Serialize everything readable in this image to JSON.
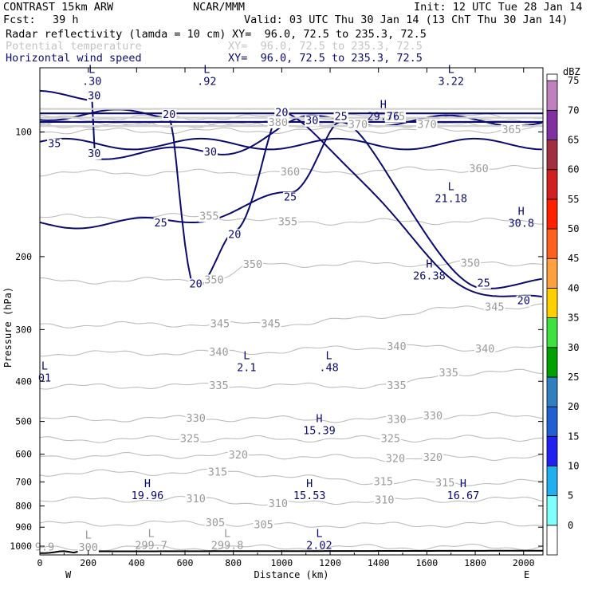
{
  "header": {
    "model": "CONTRAST 15km ARW",
    "org": "NCAR/MMM",
    "init": "Init: 12 UTC Tue 28 Jan 14",
    "fcst_label": "Fcst:",
    "fcst_value": "39 h",
    "valid": "Valid: 03 UTC Thu 30 Jan 14 (13 ChT Thu 30 Jan 14)"
  },
  "fields": [
    {
      "name": "Radar reflectivity (lamda = 10 cm)",
      "xy": "XY=  96.0, 72.5 to 235.3, 72.5",
      "color": "#000000"
    },
    {
      "name": "Potential temperature",
      "xy": "XY=  96.0, 72.5 to 235.3, 72.5",
      "color": "#c4c4c4"
    },
    {
      "name": "Horizontal wind speed",
      "xy": "XY=  96.0, 72.5 to 235.3, 72.5",
      "color": "#0a0a70"
    }
  ],
  "chart_data": {
    "type": "contour",
    "title": "Radar reflectivity / Potential temperature / Horizontal wind speed cross section",
    "xlabel": "Distance (km)",
    "ylabel": "Pressure (hPa)",
    "x_ticks": [
      0,
      200,
      400,
      600,
      800,
      1000,
      1200,
      1400,
      1600,
      1800,
      2000
    ],
    "y_ticks": [
      100,
      200,
      300,
      400,
      500,
      600,
      700,
      800,
      900,
      1000
    ],
    "xlim": [
      0,
      2080
    ],
    "y_scale": "log",
    "ylim_hPa": [
      1050,
      70
    ],
    "x_end_labels": {
      "left": "W",
      "right": "E"
    },
    "theta_contours": [
      {
        "value": 300,
        "labels": [
          {
            "text": "300",
            "x": 200,
            "p": 1010
          }
        ]
      },
      {
        "value": 305,
        "labels": [
          {
            "text": "305",
            "x": 725,
            "p": 880
          },
          {
            "text": "305",
            "x": 925,
            "p": 890
          }
        ]
      },
      {
        "value": 310,
        "labels": [
          {
            "text": "310",
            "x": 645,
            "p": 770
          },
          {
            "text": "310",
            "x": 985,
            "p": 790
          },
          {
            "text": "310",
            "x": 1425,
            "p": 775
          }
        ]
      },
      {
        "value": 315,
        "labels": [
          {
            "text": "315",
            "x": 735,
            "p": 663
          },
          {
            "text": "315",
            "x": 1420,
            "p": 700
          },
          {
            "text": "315",
            "x": 1675,
            "p": 704
          }
        ]
      },
      {
        "value": 320,
        "labels": [
          {
            "text": "320",
            "x": 820,
            "p": 603
          },
          {
            "text": "320",
            "x": 1470,
            "p": 615
          },
          {
            "text": "320",
            "x": 1625,
            "p": 612
          }
        ]
      },
      {
        "value": 325,
        "labels": [
          {
            "text": "325",
            "x": 620,
            "p": 551
          },
          {
            "text": "325",
            "x": 1450,
            "p": 551
          }
        ]
      },
      {
        "value": 330,
        "labels": [
          {
            "text": "330",
            "x": 645,
            "p": 492
          },
          {
            "text": "330",
            "x": 1475,
            "p": 495
          },
          {
            "text": "330",
            "x": 1625,
            "p": 486
          }
        ]
      },
      {
        "value": 335,
        "labels": [
          {
            "text": "335",
            "x": 740,
            "p": 410
          },
          {
            "text": "335",
            "x": 1475,
            "p": 410
          },
          {
            "text": "335",
            "x": 1690,
            "p": 382
          }
        ]
      },
      {
        "value": 340,
        "labels": [
          {
            "text": "340",
            "x": 740,
            "p": 341
          },
          {
            "text": "340",
            "x": 1475,
            "p": 330
          },
          {
            "text": "340",
            "x": 1840,
            "p": 335
          }
        ]
      },
      {
        "value": 345,
        "labels": [
          {
            "text": "345",
            "x": 745,
            "p": 291
          },
          {
            "text": "345",
            "x": 955,
            "p": 291
          },
          {
            "text": "345",
            "x": 1880,
            "p": 265
          }
        ]
      },
      {
        "value": 350,
        "labels": [
          {
            "text": "350",
            "x": 720,
            "p": 228
          },
          {
            "text": "350",
            "x": 880,
            "p": 209
          },
          {
            "text": "350",
            "x": 1780,
            "p": 208
          }
        ]
      },
      {
        "value": 355,
        "labels": [
          {
            "text": "355",
            "x": 700,
            "p": 160
          },
          {
            "text": "355",
            "x": 1025,
            "p": 165
          }
        ]
      },
      {
        "value": 360,
        "labels": [
          {
            "text": "360",
            "x": 1035,
            "p": 125
          },
          {
            "text": "360",
            "x": 1815,
            "p": 123
          }
        ]
      },
      {
        "value": 365,
        "labels": [
          {
            "text": "365",
            "x": 1950,
            "p": 99
          }
        ]
      },
      {
        "value": 370,
        "labels": [
          {
            "text": "370",
            "x": 1315,
            "p": 96
          },
          {
            "text": "370",
            "x": 1600,
            "p": 96
          }
        ]
      },
      {
        "value": 375,
        "labels": [
          {
            "text": "375",
            "x": 1470,
            "p": 92
          }
        ]
      },
      {
        "value": 380,
        "labels": [
          {
            "text": "380",
            "x": 985,
            "p": 95
          }
        ]
      }
    ],
    "wind_contours": [
      {
        "value": 20,
        "labels": [
          {
            "text": "20",
            "x": 535,
            "p": 91
          },
          {
            "text": "20",
            "x": 1000,
            "p": 90
          },
          {
            "text": "20",
            "x": 805,
            "p": 177
          },
          {
            "text": "20",
            "x": 645,
            "p": 233
          },
          {
            "text": "20",
            "x": 2000,
            "p": 256
          }
        ]
      },
      {
        "value": 25,
        "labels": [
          {
            "text": "25",
            "x": 1245,
            "p": 92
          },
          {
            "text": "25",
            "x": 500,
            "p": 166
          },
          {
            "text": "25",
            "x": 1035,
            "p": 144
          },
          {
            "text": "25",
            "x": 1835,
            "p": 232
          }
        ]
      },
      {
        "value": 30,
        "labels": [
          {
            "text": "30",
            "x": 225,
            "p": 82
          },
          {
            "text": "30",
            "x": 225,
            "p": 113
          },
          {
            "text": "30",
            "x": 705,
            "p": 112
          },
          {
            "text": "30",
            "x": 1125,
            "p": 94
          }
        ]
      },
      {
        "value": 35,
        "labels": [
          {
            "text": "35",
            "x": 60,
            "p": 107
          }
        ]
      }
    ],
    "extrema": [
      {
        "kind": "L",
        "value": ".30",
        "x": 215,
        "p": 74
      },
      {
        "kind": "L",
        "value": ".92",
        "x": 690,
        "p": 74
      },
      {
        "kind": "H",
        "value": "29.76",
        "x": 1420,
        "p": 90
      },
      {
        "kind": "L",
        "value": "3.22",
        "x": 1700,
        "p": 74
      },
      {
        "kind": "L",
        "value": "21.18",
        "x": 1700,
        "p": 142
      },
      {
        "kind": "H",
        "value": "30.8",
        "x": 1990,
        "p": 163
      },
      {
        "kind": "H",
        "value": "26.38",
        "x": 1610,
        "p": 218
      },
      {
        "kind": "L",
        "value": "2.1",
        "x": 855,
        "p": 363
      },
      {
        "kind": "L",
        "value": ".48",
        "x": 1195,
        "p": 363
      },
      {
        "kind": "L",
        "value": "01",
        "x": 0,
        "p": 385
      },
      {
        "kind": "H",
        "value": "15.39",
        "x": 1155,
        "p": 515
      },
      {
        "kind": "H",
        "value": "19.96",
        "x": 445,
        "p": 740
      },
      {
        "kind": "H",
        "value": "15.53",
        "x": 1115,
        "p": 740
      },
      {
        "kind": "H",
        "value": "16.67",
        "x": 1750,
        "p": 740
      },
      {
        "kind": "L",
        "value": "299.7",
        "x": 460,
        "p": 975
      },
      {
        "kind": "L",
        "value": "299.8",
        "x": 775,
        "p": 975
      },
      {
        "kind": "L",
        "value": "2.02",
        "x": 1155,
        "p": 975
      },
      {
        "kind": "L",
        "value": "",
        "x": 200,
        "p": 985
      },
      {
        "kind": "",
        "value": "9.9",
        "x": 0,
        "p": 985
      }
    ],
    "colorbar": {
      "unit": "dBZ",
      "levels": [
        0,
        5,
        10,
        15,
        20,
        25,
        30,
        35,
        40,
        45,
        50,
        55,
        60,
        65,
        70,
        75
      ],
      "colors": [
        "#ffffff",
        "#80ffff",
        "#20b0f0",
        "#2020f0",
        "#2060d0",
        "#3080c0",
        "#00a000",
        "#40e040",
        "#ffd000",
        "#ffa040",
        "#ff6020",
        "#ff2000",
        "#d02020",
        "#a03040",
        "#8030a0",
        "#c080c0"
      ]
    }
  }
}
